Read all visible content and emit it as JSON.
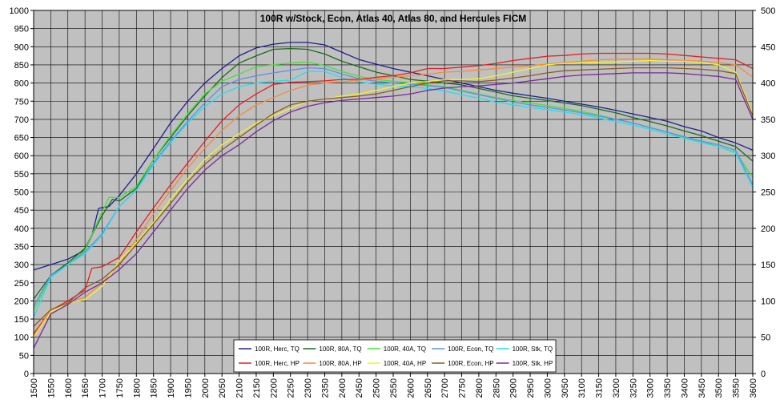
{
  "chart_data": {
    "type": "line",
    "title": "100R w/Stock, Econ, Atlas 40, Atlas 80, and Hercules FICM",
    "xlabel": "",
    "ylabel": "",
    "y2label": "",
    "xlim": [
      1500,
      3600
    ],
    "ylim": [
      0,
      1000
    ],
    "y2lim": [
      0,
      500
    ],
    "x_ticks": [
      "1500",
      "1550",
      "1600",
      "1650",
      "1700",
      "1750",
      "1800",
      "1850",
      "1900",
      "1950",
      "2000",
      "2050",
      "2100",
      "2150",
      "2200",
      "2250",
      "2300",
      "2350",
      "2400",
      "2450",
      "2500",
      "2550",
      "2600",
      "2650",
      "2700",
      "2750",
      "2800",
      "2850",
      "2900",
      "2950",
      "3000",
      "3050",
      "3100",
      "3150",
      "3200",
      "3250",
      "3300",
      "3350",
      "3400",
      "3450",
      "3500",
      "3550",
      "3600"
    ],
    "y_ticks": [
      "0",
      "50",
      "100",
      "150",
      "200",
      "250",
      "300",
      "350",
      "400",
      "450",
      "500",
      "550",
      "600",
      "650",
      "700",
      "750",
      "800",
      "850",
      "900",
      "950",
      "1000"
    ],
    "y2_ticks": [
      "0",
      "50",
      "100",
      "150",
      "200",
      "250",
      "300",
      "350",
      "400",
      "450",
      "500"
    ],
    "grid": true,
    "legend_position": "bottom-center",
    "plot_background": "#c0c0c0",
    "series": [
      {
        "name": "100R, Herc, TQ",
        "color": "#1f1f8f",
        "axis": "left",
        "x": [
          1500,
          1550,
          1600,
          1650,
          1670,
          1690,
          1720,
          1750,
          1800,
          1850,
          1900,
          1950,
          2000,
          2050,
          2100,
          2150,
          2200,
          2250,
          2300,
          2350,
          2400,
          2450,
          2500,
          2550,
          2600,
          2650,
          2700,
          2750,
          2800,
          2850,
          2900,
          2950,
          3000,
          3050,
          3100,
          3150,
          3200,
          3250,
          3300,
          3350,
          3400,
          3450,
          3500,
          3550,
          3600
        ],
        "y": [
          285,
          300,
          315,
          340,
          380,
          455,
          460,
          490,
          550,
          620,
          690,
          750,
          800,
          840,
          875,
          897,
          907,
          912,
          912,
          905,
          885,
          865,
          852,
          840,
          830,
          820,
          810,
          800,
          790,
          780,
          772,
          765,
          758,
          750,
          742,
          734,
          725,
          715,
          705,
          695,
          680,
          668,
          650,
          635,
          615
        ]
      },
      {
        "name": "100R, 80A, TQ",
        "color": "#1a6b1a",
        "axis": "left",
        "x": [
          1500,
          1550,
          1600,
          1650,
          1700,
          1730,
          1750,
          1800,
          1850,
          1900,
          1950,
          2000,
          2050,
          2100,
          2150,
          2200,
          2250,
          2300,
          2350,
          2400,
          2450,
          2500,
          2550,
          2600,
          2650,
          2700,
          2750,
          2800,
          2850,
          2900,
          2950,
          3000,
          3050,
          3100,
          3150,
          3200,
          3250,
          3300,
          3350,
          3400,
          3450,
          3500,
          3550,
          3600
        ],
        "y": [
          205,
          270,
          305,
          345,
          435,
          480,
          475,
          510,
          590,
          650,
          710,
          765,
          815,
          855,
          875,
          893,
          895,
          893,
          880,
          860,
          845,
          830,
          820,
          810,
          805,
          800,
          795,
          785,
          775,
          765,
          758,
          752,
          745,
          738,
          728,
          718,
          705,
          694,
          682,
          668,
          655,
          640,
          625,
          585
        ]
      },
      {
        "name": "100R, 40A, TQ",
        "color": "#44e03c",
        "axis": "left",
        "x": [
          1500,
          1550,
          1600,
          1650,
          1700,
          1720,
          1750,
          1800,
          1850,
          1900,
          1950,
          2000,
          2050,
          2100,
          2150,
          2200,
          2250,
          2300,
          2350,
          2400,
          2450,
          2500,
          2550,
          2600,
          2650,
          2700,
          2750,
          2800,
          2850,
          2900,
          2950,
          3000,
          3050,
          3100,
          3150,
          3200,
          3250,
          3300,
          3350,
          3400,
          3450,
          3500,
          3550,
          3600
        ],
        "y": [
          175,
          265,
          300,
          340,
          445,
          485,
          485,
          515,
          590,
          655,
          715,
          770,
          805,
          825,
          845,
          850,
          855,
          858,
          848,
          832,
          818,
          810,
          805,
          800,
          795,
          790,
          780,
          770,
          760,
          752,
          745,
          738,
          730,
          722,
          712,
          700,
          690,
          678,
          665,
          650,
          640,
          625,
          610,
          540
        ]
      },
      {
        "name": "100R, Econ, TQ",
        "color": "#5f8fe8",
        "axis": "left",
        "x": [
          1500,
          1550,
          1600,
          1650,
          1700,
          1750,
          1800,
          1850,
          1900,
          1950,
          2000,
          2050,
          2100,
          2150,
          2200,
          2250,
          2300,
          2350,
          2400,
          2450,
          2500,
          2550,
          2600,
          2650,
          2700,
          2750,
          2800,
          2850,
          2900,
          2950,
          3000,
          3050,
          3100,
          3150,
          3200,
          3250,
          3300,
          3350,
          3400,
          3450,
          3500,
          3550,
          3600
        ],
        "y": [
          185,
          270,
          300,
          335,
          385,
          460,
          505,
          580,
          640,
          695,
          745,
          790,
          810,
          820,
          828,
          835,
          842,
          840,
          825,
          812,
          805,
          800,
          797,
          793,
          788,
          778,
          768,
          758,
          748,
          740,
          733,
          726,
          718,
          709,
          700,
          690,
          677,
          665,
          652,
          640,
          630,
          615,
          520
        ]
      },
      {
        "name": "100R, Stk, TQ",
        "color": "#1de0f0",
        "axis": "left",
        "x": [
          1500,
          1550,
          1600,
          1650,
          1700,
          1750,
          1800,
          1850,
          1900,
          1950,
          2000,
          2050,
          2100,
          2150,
          2200,
          2250,
          2300,
          2350,
          2400,
          2450,
          2500,
          2550,
          2600,
          2650,
          2700,
          2750,
          2800,
          2850,
          2900,
          2950,
          3000,
          3050,
          3100,
          3150,
          3200,
          3250,
          3300,
          3350,
          3400,
          3450,
          3500,
          3550,
          3600
        ],
        "y": [
          155,
          265,
          300,
          330,
          380,
          460,
          505,
          575,
          635,
          690,
          735,
          770,
          790,
          800,
          805,
          808,
          832,
          832,
          815,
          803,
          797,
          792,
          790,
          785,
          778,
          768,
          758,
          748,
          740,
          733,
          727,
          720,
          713,
          704,
          694,
          684,
          673,
          660,
          648,
          636,
          625,
          608,
          512
        ]
      },
      {
        "name": "100R, Herc, HP",
        "color": "#e52020",
        "axis": "right",
        "x": [
          1500,
          1550,
          1600,
          1650,
          1670,
          1700,
          1750,
          1800,
          1850,
          1900,
          1950,
          2000,
          2050,
          2100,
          2150,
          2200,
          2250,
          2300,
          2350,
          2400,
          2450,
          2500,
          2550,
          2600,
          2650,
          2700,
          2750,
          2800,
          2850,
          2900,
          2950,
          3000,
          3050,
          3100,
          3150,
          3200,
          3250,
          3300,
          3350,
          3400,
          3450,
          3500,
          3550,
          3600
        ],
        "y": [
          55,
          87,
          100,
          115,
          145,
          147,
          160,
          195,
          228,
          260,
          290,
          320,
          348,
          370,
          385,
          398,
          401,
          402,
          403,
          405,
          405,
          408,
          410,
          414,
          420,
          420,
          422,
          424,
          427,
          431,
          434,
          437,
          438,
          440,
          441,
          441,
          441,
          441,
          440,
          438,
          436,
          434,
          432,
          420
        ]
      },
      {
        "name": "100R, 80A, HP",
        "color": "#f58a3c",
        "axis": "right",
        "x": [
          1500,
          1550,
          1600,
          1650,
          1700,
          1750,
          1800,
          1850,
          1900,
          1950,
          2000,
          2050,
          2100,
          2150,
          2200,
          2250,
          2300,
          2350,
          2400,
          2450,
          2500,
          2550,
          2600,
          2650,
          2700,
          2750,
          2800,
          2850,
          2900,
          2950,
          3000,
          3050,
          3100,
          3150,
          3200,
          3250,
          3300,
          3350,
          3400,
          3450,
          3500,
          3550,
          3600
        ],
        "y": [
          52,
          87,
          98,
          105,
          125,
          150,
          185,
          220,
          252,
          283,
          310,
          335,
          355,
          370,
          380,
          390,
          397,
          400,
          402,
          404,
          406,
          408,
          410,
          412,
          415,
          416,
          418,
          420,
          422,
          424,
          426,
          428,
          430,
          432,
          433,
          433,
          433,
          432,
          431,
          430,
          428,
          425,
          408
        ]
      },
      {
        "name": "100R, 40A, HP",
        "color": "#f2f22a",
        "axis": "right",
        "x": [
          1500,
          1550,
          1600,
          1650,
          1700,
          1750,
          1800,
          1850,
          1900,
          1950,
          2000,
          2050,
          2100,
          2150,
          2200,
          2250,
          2300,
          2350,
          2400,
          2450,
          2500,
          2550,
          2600,
          2650,
          2700,
          2750,
          2800,
          2850,
          2900,
          2950,
          3000,
          3050,
          3100,
          3150,
          3200,
          3250,
          3300,
          3350,
          3400,
          3450,
          3500,
          3550,
          3600
        ],
        "y": [
          50,
          85,
          97,
          102,
          120,
          155,
          180,
          208,
          240,
          268,
          295,
          315,
          330,
          345,
          355,
          365,
          375,
          378,
          382,
          385,
          390,
          395,
          400,
          402,
          405,
          405,
          406,
          410,
          415,
          420,
          425,
          427,
          428,
          428,
          429,
          430,
          431,
          430,
          430,
          428,
          425,
          415,
          358
        ]
      },
      {
        "name": "100R, Econ, HP",
        "color": "#8a5a2a",
        "axis": "right",
        "x": [
          1500,
          1550,
          1600,
          1650,
          1700,
          1750,
          1800,
          1850,
          1900,
          1950,
          2000,
          2050,
          2100,
          2150,
          2200,
          2250,
          2300,
          2350,
          2400,
          2450,
          2500,
          2550,
          2600,
          2650,
          2700,
          2750,
          2800,
          2850,
          2900,
          2950,
          3000,
          3050,
          3100,
          3150,
          3200,
          3250,
          3300,
          3350,
          3400,
          3450,
          3500,
          3550,
          3600
        ],
        "y": [
          65,
          88,
          97,
          118,
          130,
          150,
          178,
          206,
          234,
          264,
          288,
          308,
          325,
          342,
          358,
          370,
          375,
          378,
          380,
          382,
          385,
          390,
          395,
          400,
          403,
          403,
          402,
          404,
          407,
          410,
          414,
          417,
          418,
          419,
          420,
          421,
          421,
          421,
          420,
          419,
          417,
          413,
          355
        ]
      },
      {
        "name": "100R, Stk, HP",
        "color": "#7a2a9a",
        "axis": "right",
        "x": [
          1500,
          1550,
          1600,
          1650,
          1700,
          1750,
          1800,
          1850,
          1900,
          1950,
          2000,
          2050,
          2100,
          2150,
          2200,
          2250,
          2300,
          2350,
          2400,
          2450,
          2500,
          2550,
          2600,
          2650,
          2700,
          2750,
          2800,
          2850,
          2900,
          2950,
          3000,
          3050,
          3100,
          3150,
          3200,
          3250,
          3300,
          3350,
          3400,
          3450,
          3500,
          3550,
          3600
        ],
        "y": [
          35,
          82,
          95,
          112,
          125,
          143,
          165,
          195,
          225,
          255,
          280,
          300,
          315,
          333,
          348,
          360,
          368,
          373,
          376,
          378,
          380,
          382,
          385,
          390,
          393,
          395,
          396,
          398,
          400,
          403,
          406,
          409,
          411,
          412,
          413,
          414,
          414,
          414,
          413,
          411,
          409,
          405,
          350
        ]
      }
    ],
    "legend_order": [
      0,
      1,
      2,
      3,
      4,
      5,
      6,
      7,
      8,
      9
    ]
  }
}
